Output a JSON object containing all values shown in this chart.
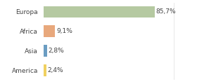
{
  "categories": [
    "Europa",
    "Africa",
    "Asia",
    "America"
  ],
  "values": [
    85.7,
    9.1,
    2.8,
    2.4
  ],
  "labels": [
    "85,7%",
    "9,1%",
    "2,8%",
    "2,4%"
  ],
  "bar_colors": [
    "#b5c9a1",
    "#e8a87c",
    "#6b9dc2",
    "#f0d060"
  ],
  "background_color": "#ffffff",
  "xlim": [
    0,
    115
  ],
  "label_fontsize": 6.5,
  "tick_fontsize": 6.5,
  "bar_height": 0.6
}
